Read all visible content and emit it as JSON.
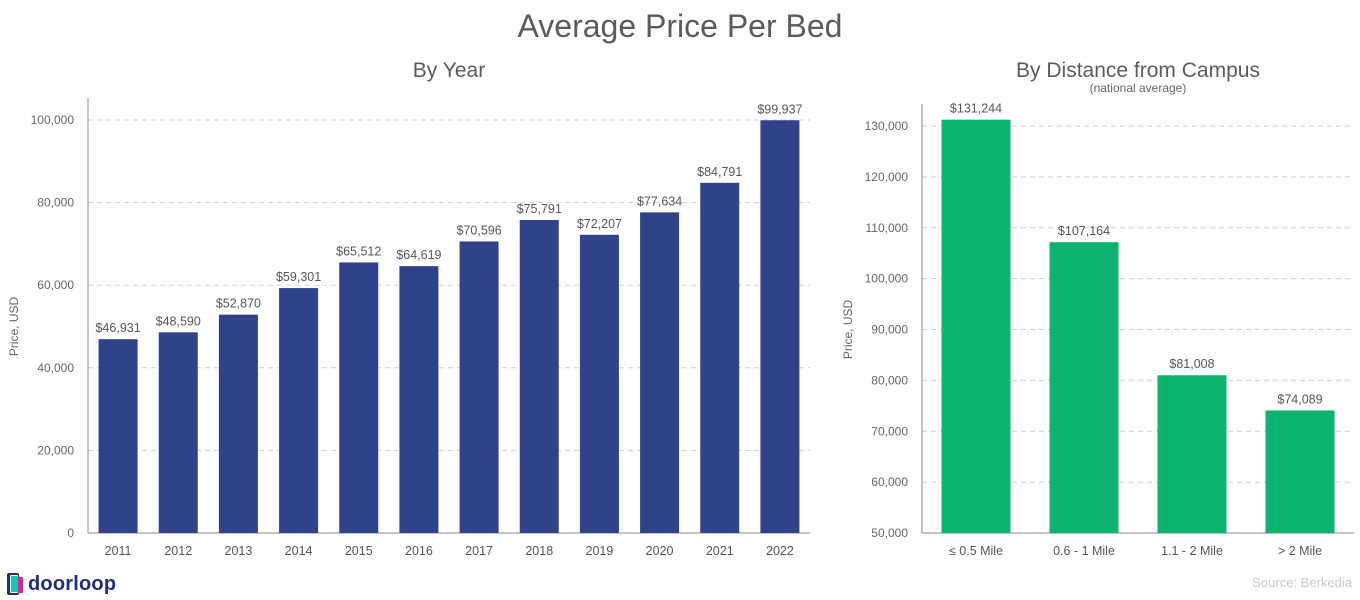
{
  "title": "Average Price Per Bed",
  "logo_text": "doorloop",
  "source": "Source: Berkedia",
  "colors": {
    "year_bar": "#30428a",
    "distance_bar": "#0bb36e",
    "grid": "#cfcfcf",
    "axis": "#888888"
  },
  "chart_data": [
    {
      "type": "bar",
      "title": "By Year",
      "subtitle": "",
      "xlabel": "",
      "ylabel": "Price, USD",
      "ylim": [
        0,
        100000
      ],
      "yticks": [
        0,
        20000,
        40000,
        60000,
        80000,
        100000
      ],
      "ytick_labels": [
        "0",
        "20,000",
        "40,000",
        "60,000",
        "80,000",
        "100,000"
      ],
      "grid": true,
      "categories": [
        "2011",
        "2012",
        "2013",
        "2014",
        "2015",
        "2016",
        "2017",
        "2018",
        "2019",
        "2020",
        "2021",
        "2022"
      ],
      "values": [
        46931,
        48590,
        52870,
        59301,
        65512,
        64619,
        70596,
        75791,
        72207,
        77634,
        84791,
        99937
      ],
      "data_labels": [
        "$46,931",
        "$48,590",
        "$52,870",
        "$59,301",
        "$65,512",
        "$64,619",
        "$70,596",
        "$75,791",
        "$72,207",
        "$77,634",
        "$84,791",
        "$99,937"
      ]
    },
    {
      "type": "bar",
      "title": "By Distance from Campus",
      "subtitle": "(national average)",
      "xlabel": "",
      "ylabel": "Price, USD",
      "ylim": [
        50000,
        135000
      ],
      "yticks": [
        50000,
        60000,
        70000,
        80000,
        90000,
        100000,
        110000,
        120000,
        130000
      ],
      "ytick_labels": [
        "50,000",
        "60,000",
        "70,000",
        "80,000",
        "90,000",
        "100,000",
        "110,000",
        "120,000",
        "130,000"
      ],
      "grid": true,
      "categories": [
        "≤ 0.5 Mile",
        "0.6 - 1 Mile",
        "1.1 - 2 Mile",
        "> 2 Mile"
      ],
      "values": [
        131244,
        107164,
        81008,
        74089
      ],
      "data_labels": [
        "$131,244",
        "$107,164",
        "$81,008",
        "$74,089"
      ]
    }
  ]
}
